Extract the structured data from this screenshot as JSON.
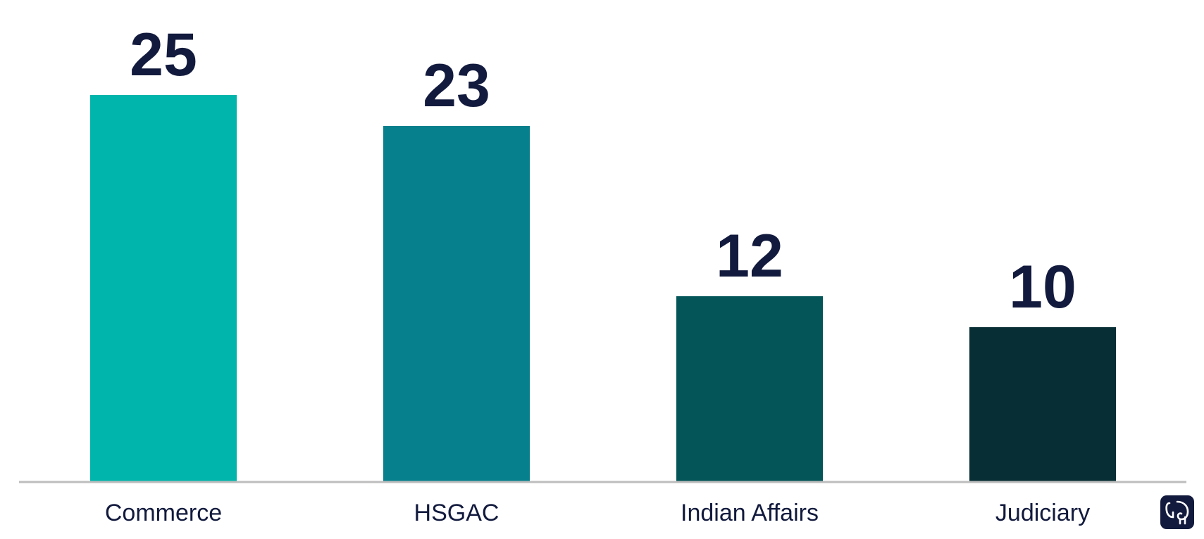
{
  "chart_data": {
    "type": "bar",
    "categories": [
      "Commerce",
      "HSGAC",
      "Indian Affairs",
      "Judiciary"
    ],
    "values": [
      25,
      23,
      12,
      10
    ],
    "title": "",
    "xlabel": "",
    "ylabel": "",
    "ylim": [
      0,
      27
    ],
    "grid": false,
    "legend": "none",
    "data_labels": true
  },
  "colors": {
    "bars": [
      "#00b5ab",
      "#06808c",
      "#035558",
      "#062e34"
    ],
    "labels": "#121a3d",
    "axis": "#bdbdbd",
    "logo": "#121a3d"
  },
  "logo": {
    "icon": "elephant-icon"
  }
}
